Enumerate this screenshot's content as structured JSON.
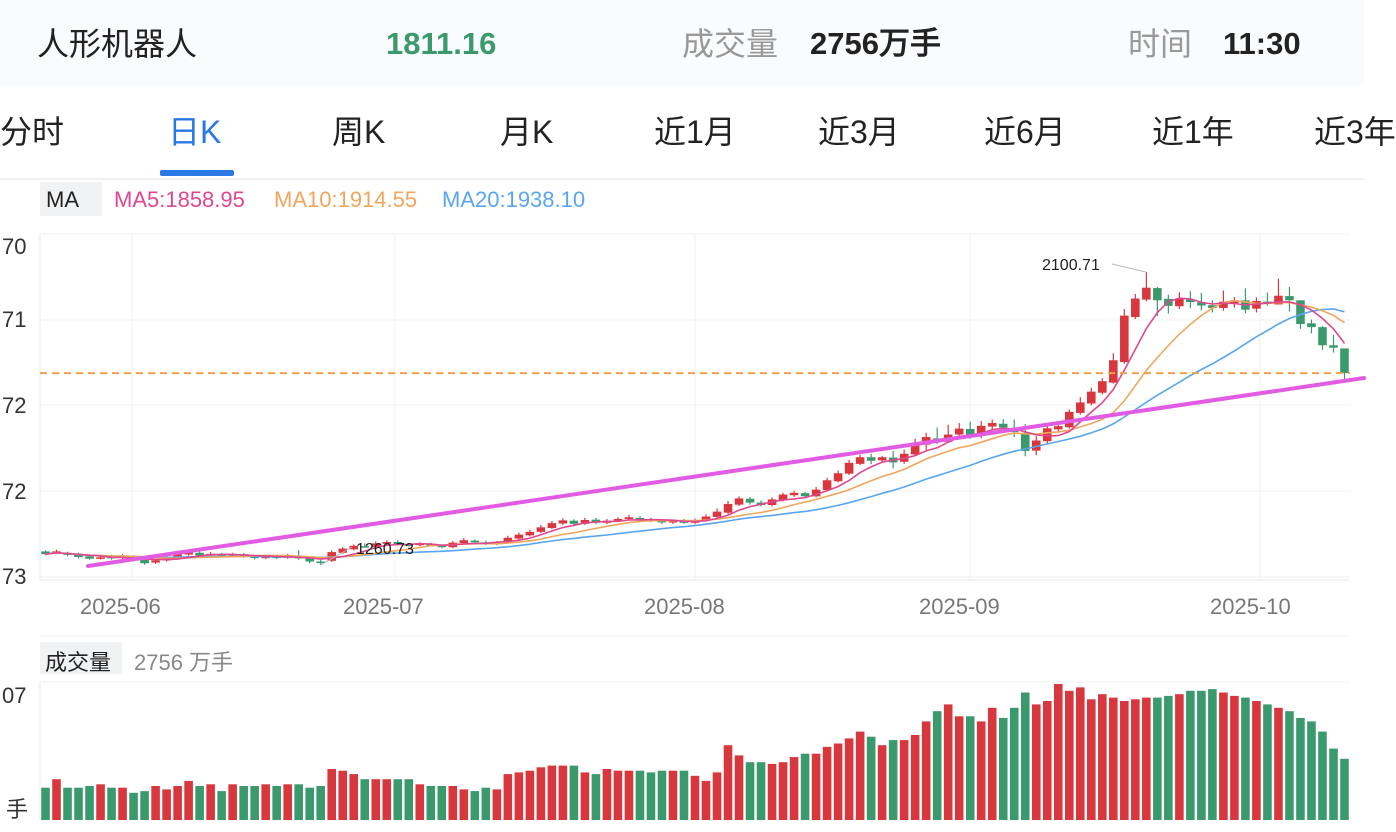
{
  "header": {
    "name": "人形机器人",
    "price": "1811.16",
    "volume_label": "成交量",
    "volume_value": "2756万手",
    "time_label": "时间",
    "time_value": "11:30"
  },
  "tabs": [
    {
      "label": "分时",
      "active": false
    },
    {
      "label": "日K",
      "active": true
    },
    {
      "label": "周K",
      "active": false
    },
    {
      "label": "月K",
      "active": false
    },
    {
      "label": "近1月",
      "active": false
    },
    {
      "label": "近3月",
      "active": false
    },
    {
      "label": "近6月",
      "active": false
    },
    {
      "label": "近1年",
      "active": false
    },
    {
      "label": "近3年",
      "active": false
    }
  ],
  "ma_legend": {
    "label": "MA",
    "ma5": "MA5:1858.95",
    "ma10": "MA10:1914.55",
    "ma20": "MA20:1938.10"
  },
  "price_axis_labels": [
    "70",
    "71",
    "72",
    "72",
    "73"
  ],
  "annotations": {
    "high": "2100.71",
    "low": "1260.73"
  },
  "date_labels": [
    "2025-06",
    "2025-07",
    "2025-08",
    "2025-09",
    "2025-10"
  ],
  "volume_panel": {
    "label": "成交量",
    "value": "2756 万手",
    "axis_top": "07",
    "axis_bottom": "手"
  },
  "colors": {
    "up": "#d9373e",
    "down": "#3a9a6e",
    "active_tab": "#2a78e4",
    "ma5": "#e0478f",
    "ma10": "#f0a75c",
    "ma20": "#5aa6ee",
    "trendline": "#e25ce3",
    "ref_line": "#f0a34a",
    "price_green": "#3a9a6e"
  },
  "chart_data": {
    "type": "candlestick",
    "title": "人形机器人",
    "x_ticks": [
      "2025-06",
      "2025-07",
      "2025-08",
      "2025-09",
      "2025-10"
    ],
    "high_label": 2100.71,
    "low_label": 1260.73,
    "last_close": 1811.16,
    "ylim": [
      1218,
      2210
    ],
    "ma": {
      "MA5": 1858.95,
      "MA10": 1914.55,
      "MA20": 1938.1
    },
    "ohlc": [
      [
        1300,
        1292,
        1303,
        1289
      ],
      [
        1297,
        1300,
        1305,
        1293
      ],
      [
        1296,
        1290,
        1299,
        1286
      ],
      [
        1292,
        1284,
        1296,
        1280
      ],
      [
        1286,
        1279,
        1290,
        1276
      ],
      [
        1280,
        1283,
        1287,
        1277
      ],
      [
        1285,
        1280,
        1290,
        1276
      ],
      [
        1281,
        1287,
        1292,
        1278
      ],
      [
        1287,
        1276,
        1289,
        1272
      ],
      [
        1276,
        1266,
        1280,
        1262
      ],
      [
        1268,
        1274,
        1278,
        1264
      ],
      [
        1274,
        1282,
        1287,
        1271
      ],
      [
        1281,
        1292,
        1298,
        1279
      ],
      [
        1291,
        1297,
        1303,
        1288
      ],
      [
        1296,
        1288,
        1300,
        1283
      ],
      [
        1288,
        1293,
        1298,
        1284
      ],
      [
        1293,
        1287,
        1296,
        1283
      ],
      [
        1288,
        1292,
        1296,
        1284
      ],
      [
        1292,
        1287,
        1295,
        1282
      ],
      [
        1287,
        1281,
        1290,
        1277
      ],
      [
        1282,
        1285,
        1289,
        1278
      ],
      [
        1285,
        1282,
        1289,
        1278
      ],
      [
        1282,
        1288,
        1293,
        1279
      ],
      [
        1288,
        1280,
        1303,
        1276
      ],
      [
        1280,
        1271,
        1283,
        1266
      ],
      [
        1271,
        1268,
        1276,
        1260.73
      ],
      [
        1273,
        1298,
        1303,
        1270
      ],
      [
        1296,
        1308,
        1312,
        1293
      ],
      [
        1306,
        1316,
        1320,
        1303
      ],
      [
        1315,
        1313,
        1323,
        1311
      ],
      [
        1313,
        1323,
        1329,
        1310
      ],
      [
        1322,
        1327,
        1332,
        1319
      ],
      [
        1327,
        1320,
        1332,
        1316
      ],
      [
        1320,
        1318,
        1324,
        1314
      ],
      [
        1318,
        1322,
        1326,
        1315
      ],
      [
        1322,
        1317,
        1325,
        1314
      ],
      [
        1317,
        1312,
        1320,
        1309
      ],
      [
        1312,
        1325,
        1330,
        1309
      ],
      [
        1324,
        1332,
        1338,
        1321
      ],
      [
        1331,
        1326,
        1334,
        1322
      ],
      [
        1326,
        1321,
        1331,
        1318
      ],
      [
        1321,
        1326,
        1330,
        1318
      ],
      [
        1326,
        1339,
        1345,
        1323
      ],
      [
        1337,
        1348,
        1354,
        1334
      ],
      [
        1346,
        1356,
        1362,
        1343
      ],
      [
        1356,
        1369,
        1376,
        1353
      ],
      [
        1367,
        1381,
        1387,
        1364
      ],
      [
        1380,
        1389,
        1395,
        1376
      ],
      [
        1388,
        1379,
        1392,
        1375
      ],
      [
        1379,
        1390,
        1396,
        1376
      ],
      [
        1391,
        1382,
        1396,
        1378
      ],
      [
        1382,
        1388,
        1393,
        1378
      ],
      [
        1388,
        1393,
        1398,
        1384
      ],
      [
        1393,
        1398,
        1405,
        1390
      ],
      [
        1396,
        1390,
        1401,
        1386
      ],
      [
        1390,
        1389,
        1396,
        1384
      ],
      [
        1389,
        1383,
        1393,
        1379
      ],
      [
        1383,
        1387,
        1390,
        1379
      ],
      [
        1387,
        1382,
        1393,
        1379
      ],
      [
        1382,
        1388,
        1394,
        1378
      ],
      [
        1388,
        1400,
        1406,
        1385
      ],
      [
        1399,
        1414,
        1423,
        1396
      ],
      [
        1411,
        1436,
        1445,
        1407
      ],
      [
        1434,
        1452,
        1458,
        1430
      ],
      [
        1451,
        1440,
        1456,
        1434
      ],
      [
        1440,
        1433,
        1446,
        1429
      ],
      [
        1433,
        1449,
        1455,
        1429
      ],
      [
        1447,
        1463,
        1468,
        1443
      ],
      [
        1461,
        1468,
        1474,
        1456
      ],
      [
        1467,
        1458,
        1471,
        1453
      ],
      [
        1458,
        1477,
        1485,
        1455
      ],
      [
        1476,
        1504,
        1511,
        1472
      ],
      [
        1501,
        1524,
        1532,
        1498
      ],
      [
        1523,
        1554,
        1562,
        1519
      ],
      [
        1551,
        1570,
        1577,
        1547
      ],
      [
        1570,
        1560,
        1580,
        1550
      ],
      [
        1561,
        1570,
        1574,
        1556
      ],
      [
        1569,
        1555,
        1588,
        1538
      ],
      [
        1557,
        1580,
        1592,
        1551
      ],
      [
        1578,
        1608,
        1623,
        1575
      ],
      [
        1606,
        1628,
        1640,
        1591
      ],
      [
        1624,
        1614,
        1655,
        1608
      ],
      [
        1614,
        1635,
        1663,
        1625
      ],
      [
        1635,
        1652,
        1668,
        1628
      ],
      [
        1651,
        1630,
        1672,
        1623
      ],
      [
        1631,
        1660,
        1674,
        1624
      ],
      [
        1658,
        1668,
        1678,
        1647
      ],
      [
        1666,
        1655,
        1679,
        1642
      ],
      [
        1654,
        1642,
        1678,
        1628
      ],
      [
        1640,
        1588,
        1665,
        1573
      ],
      [
        1589,
        1618,
        1631,
        1576
      ],
      [
        1616,
        1653,
        1664,
        1609
      ],
      [
        1650,
        1659,
        1666,
        1640
      ],
      [
        1656,
        1700,
        1707,
        1652
      ],
      [
        1697,
        1727,
        1742,
        1692
      ],
      [
        1724,
        1758,
        1769,
        1719
      ],
      [
        1755,
        1788,
        1797,
        1750
      ],
      [
        1784,
        1848,
        1868,
        1781
      ],
      [
        1843,
        1976,
        1995,
        1838
      ],
      [
        1972,
        2025,
        2038,
        1966
      ],
      [
        2022,
        2056,
        2100.71,
        2017
      ],
      [
        2055,
        2020,
        2058,
        1975
      ],
      [
        2024,
        2004,
        2036,
        1982
      ],
      [
        2003,
        2025,
        2043,
        1995
      ],
      [
        2022,
        2015,
        2046,
        1998
      ],
      [
        2014,
        2005,
        2041,
        1991
      ],
      [
        2006,
        1998,
        2020,
        1985
      ],
      [
        1998,
        2016,
        2048,
        1990
      ],
      [
        2012,
        2020,
        2029,
        1999
      ],
      [
        2020,
        1993,
        2054,
        1983
      ],
      [
        1996,
        2018,
        2028,
        1985
      ],
      [
        2016,
        2012,
        2042,
        2004
      ],
      [
        2008,
        2033,
        2082,
        2016
      ],
      [
        2032,
        2020,
        2058,
        1988
      ],
      [
        2020,
        1952,
        2019,
        1938
      ],
      [
        1954,
        1943,
        1965,
        1925
      ],
      [
        1943,
        1891,
        1946,
        1878
      ],
      [
        1891,
        1884,
        1921,
        1870
      ],
      [
        1882,
        1811.16,
        1848,
        1793
      ]
    ],
    "volume": [
      19,
      24,
      19,
      19,
      20,
      21,
      19,
      19,
      16,
      17,
      20,
      18,
      20,
      23,
      20,
      21,
      17,
      21,
      20,
      20,
      21,
      20,
      21,
      21,
      19,
      20,
      30,
      29,
      27,
      24,
      24,
      24,
      24,
      24,
      21,
      20,
      20,
      20,
      18,
      17,
      19,
      18,
      27,
      28,
      29,
      31,
      32,
      32,
      32,
      28,
      27,
      30,
      29,
      29,
      29,
      28,
      29,
      29,
      29,
      26,
      23,
      28,
      44,
      38,
      34,
      34,
      33,
      34,
      37,
      39,
      39,
      43,
      45,
      48,
      52,
      49,
      44,
      47,
      47,
      50,
      58,
      64,
      68,
      61,
      61,
      58,
      66,
      60,
      66,
      75,
      68,
      70,
      80,
      76,
      78,
      71,
      74,
      72,
      70,
      71,
      72,
      72,
      73,
      74,
      76,
      76,
      77,
      75,
      73,
      72,
      70,
      68,
      66,
      64,
      60,
      58,
      52,
      42,
      36
    ]
  }
}
